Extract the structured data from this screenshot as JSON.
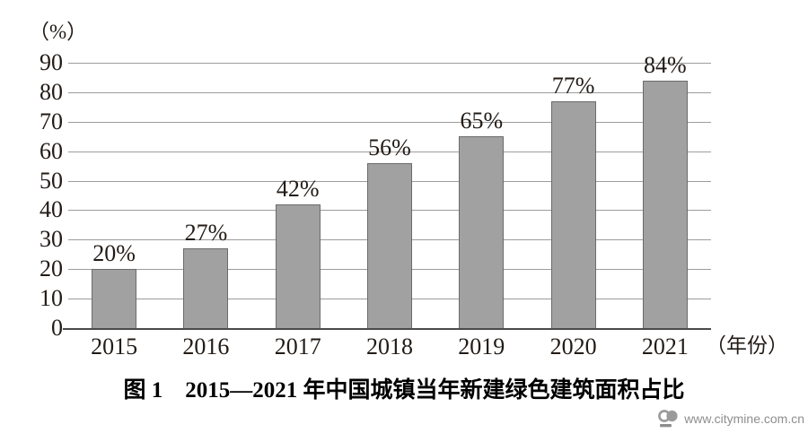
{
  "chart_data": {
    "type": "bar",
    "title": "图 1　2015—2021 年中国城镇当年新建绿色建筑面积占比",
    "categories": [
      "2015",
      "2016",
      "2017",
      "2018",
      "2019",
      "2020",
      "2021"
    ],
    "values": [
      20,
      27,
      42,
      56,
      65,
      77,
      84
    ],
    "value_labels": [
      "20%",
      "27%",
      "42%",
      "56%",
      "65%",
      "77%",
      "84%"
    ],
    "xlabel": "（年份）",
    "ylabel": "（%）",
    "ylim": [
      0,
      90
    ],
    "yticks": [
      0,
      10,
      20,
      30,
      40,
      50,
      60,
      70,
      80,
      90
    ],
    "grid": true,
    "legend": "none",
    "bar_color": "#a1a1a1",
    "bar_border_color": "#6b6b6b",
    "gridline_color": "#9c9c9c",
    "axis_color": "#4a4a4a",
    "text_color": "#221b16"
  },
  "watermark": {
    "logo_name": "citymine-logo",
    "text": "www.citymine.com.cn"
  }
}
